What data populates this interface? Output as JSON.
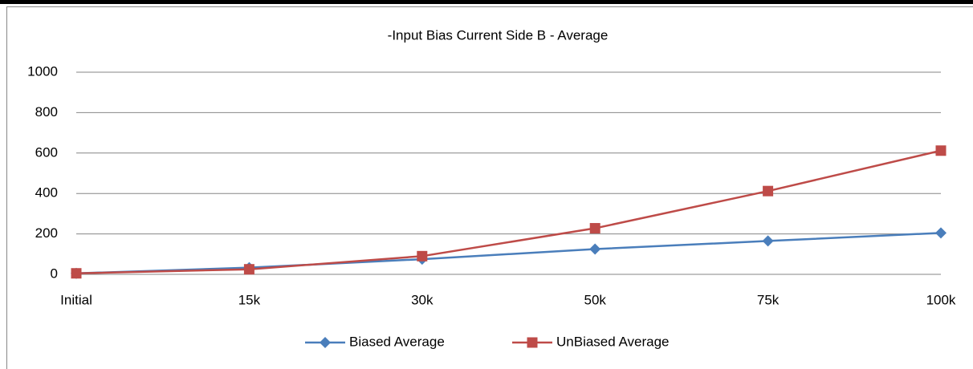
{
  "chart_data": {
    "type": "line",
    "title": "-Input Bias Current Side B - Average",
    "categories": [
      "Initial",
      "15k",
      "30k",
      "50k",
      "75k",
      "100k"
    ],
    "series": [
      {
        "name": "Biased Average",
        "color": "#4a7ebb",
        "marker": "diamond",
        "values": [
          5,
          33,
          75,
          125,
          165,
          205
        ]
      },
      {
        "name": "UnBiased Average",
        "color": "#be4b48",
        "marker": "square",
        "values": [
          5,
          25,
          90,
          228,
          412,
          612
        ]
      }
    ],
    "ylim": [
      0,
      1000
    ],
    "yticks": [
      0,
      200,
      400,
      600,
      800,
      1000
    ],
    "grid": true,
    "legend": "bottom"
  }
}
